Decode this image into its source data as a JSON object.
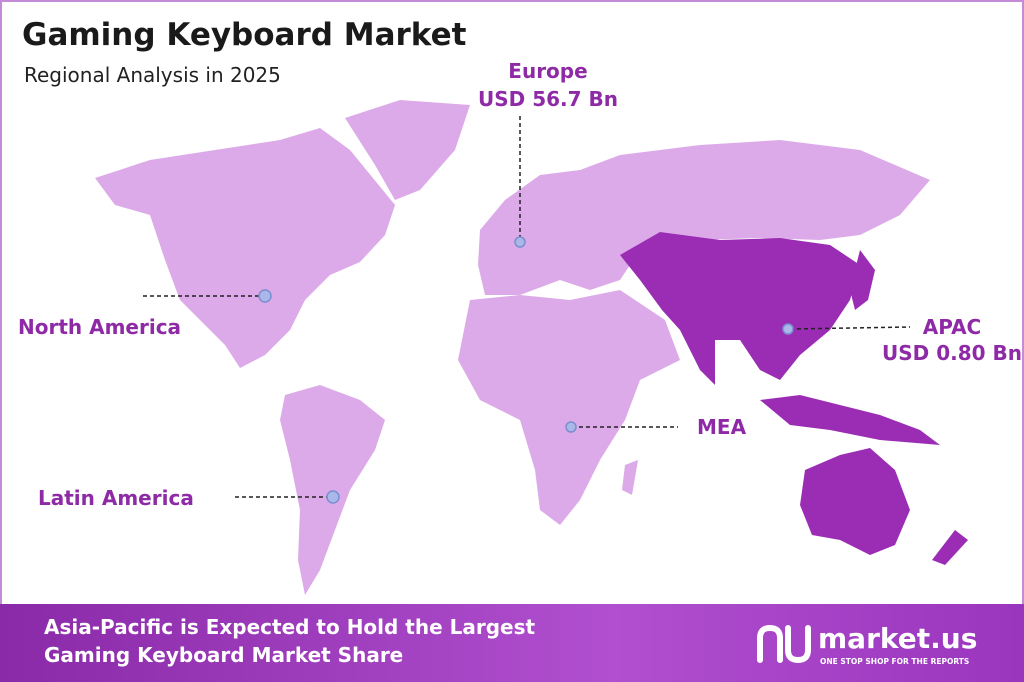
{
  "header": {
    "title": "Gaming Keyboard Market",
    "subtitle": "Regional Analysis in 2025"
  },
  "regions": [
    {
      "name": "Europe",
      "value": "USD 56.7 Bn"
    },
    {
      "name": "North America"
    },
    {
      "name": "APAC",
      "value": "USD 0.80 Bn"
    },
    {
      "name": "MEA"
    },
    {
      "name": "Latin America"
    }
  ],
  "footer": {
    "headline": [
      "Asia-Pacific is Expected to Hold the Largest",
      "Gaming Keyboard Market Share"
    ]
  },
  "brand": {
    "name": "market.us",
    "tagline": "ONE STOP SHOP FOR THE REPORTS"
  }
}
